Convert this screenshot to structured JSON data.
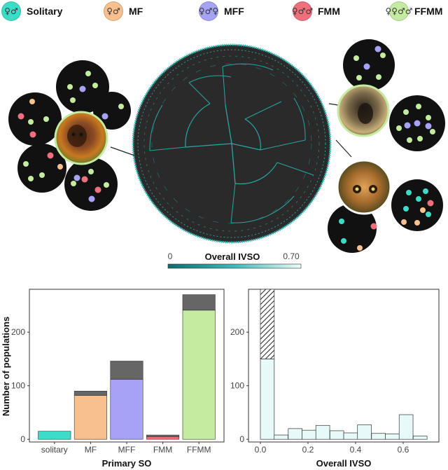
{
  "legend": [
    {
      "label": "Solitary",
      "color": "#3ddcc8",
      "glyph": "♀♂",
      "icon": "solitary-symbol"
    },
    {
      "label": "MF",
      "color": "#f7c08e",
      "glyph": "♀♂",
      "icon": "female-male-symbol"
    },
    {
      "label": "MFF",
      "color": "#a6a2f5",
      "glyph": "♀♂♀",
      "icon": "female-male-female-symbol"
    },
    {
      "label": "FMM",
      "color": "#ef6f7c",
      "glyph": "♀♂♂",
      "icon": "female-male-male-symbol"
    },
    {
      "label": "FFMM",
      "color": "#c4eba0",
      "glyph": "♀♀♂♂",
      "icon": "female-female-male-male-symbol"
    }
  ],
  "colorbar": {
    "min_label": "0",
    "title": "Overall IVSO",
    "max_label": "0.70"
  },
  "chart_data": [
    {
      "type": "bar",
      "xlabel": "Primary SO",
      "ylabel": "Number of populations",
      "ylim": [
        0,
        280
      ],
      "yticks": [
        0,
        100,
        200
      ],
      "categories": [
        "solitary",
        "MF",
        "MFF",
        "FMM",
        "FFMM"
      ],
      "colors": [
        "#3ddcc8",
        "#f7c08e",
        "#a6a2f5",
        "#ef6f7c",
        "#c4eba0"
      ],
      "series": [
        {
          "values": [
            15,
            82,
            112,
            5,
            241
          ]
        },
        {
          "values": [
            0,
            8,
            34,
            3,
            29
          ]
        }
      ],
      "totals": [
        15,
        90,
        146,
        8,
        270
      ],
      "grid": false
    },
    {
      "type": "bar",
      "xlabel": "Overall IVSO",
      "ylabel": "",
      "xlim": [
        -0.05,
        0.75
      ],
      "ylim": [
        0,
        280
      ],
      "xticks": [
        "0.0",
        "0.2",
        "0.4",
        "0.6"
      ],
      "yticks": [
        0,
        100,
        200
      ],
      "bin_width": 0.0583,
      "bin_starts": [
        0.0,
        0.058,
        0.117,
        0.175,
        0.233,
        0.292,
        0.35,
        0.408,
        0.467,
        0.525,
        0.583,
        0.642
      ],
      "series": [
        {
          "values": [
            150,
            8,
            20,
            17,
            26,
            16,
            12,
            27,
            11,
            10,
            46,
            6
          ]
        },
        {
          "values": [
            130,
            0,
            0,
            0,
            0,
            0,
            0,
            0,
            0,
            0,
            0,
            0
          ]
        }
      ],
      "fill": "#e8f9fa",
      "grid": false
    }
  ]
}
